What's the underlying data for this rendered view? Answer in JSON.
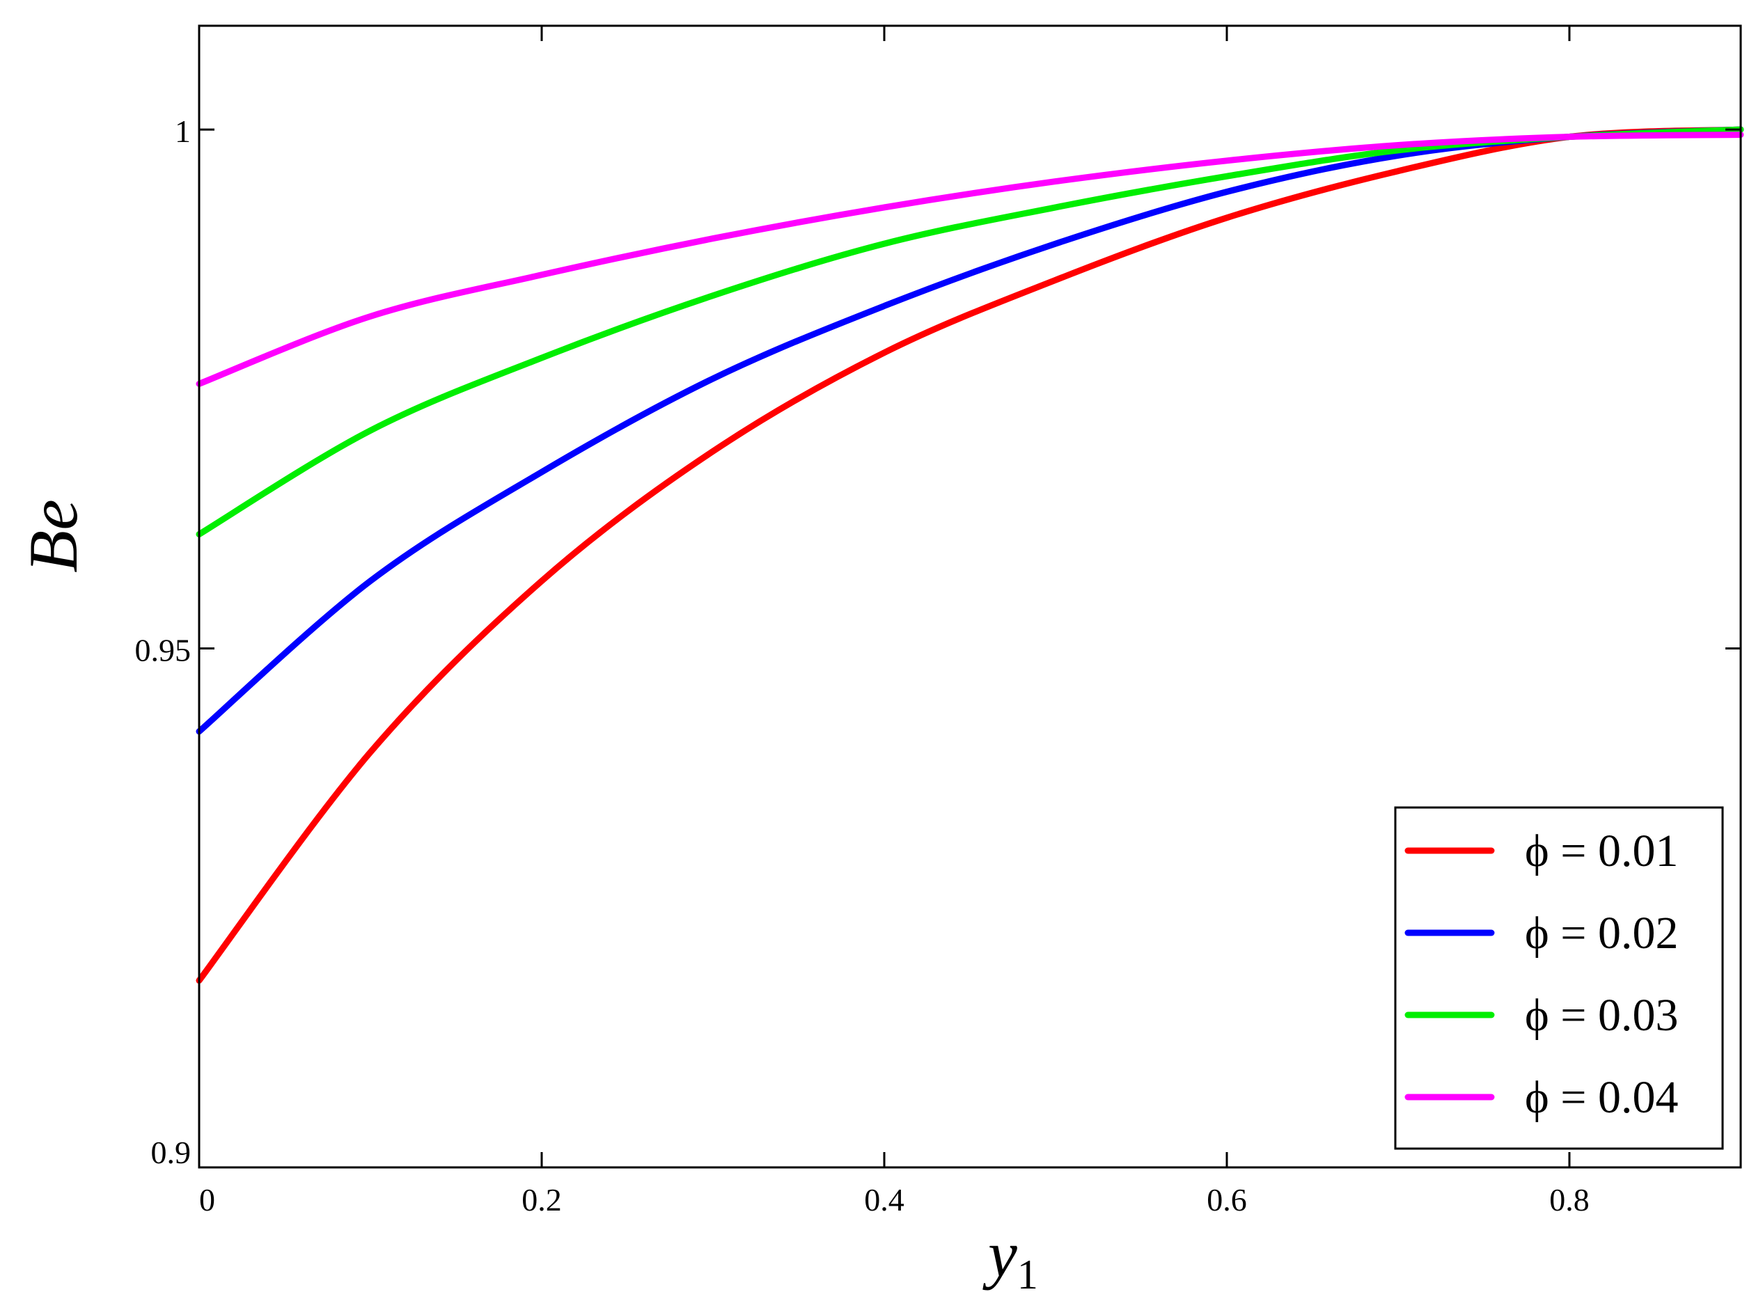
{
  "chart_data": {
    "type": "line",
    "title": "",
    "xlabel": "y",
    "xlabel_subscript": "1",
    "ylabel": "Be",
    "xlim": [
      0,
      0.9
    ],
    "ylim": [
      0.9,
      1.01
    ],
    "x_ticks": [
      {
        "value": 0,
        "label": "0"
      },
      {
        "value": 0.2,
        "label": "0.2"
      },
      {
        "value": 0.4,
        "label": "0.4"
      },
      {
        "value": 0.6,
        "label": "0.6"
      },
      {
        "value": 0.8,
        "label": "0.8"
      }
    ],
    "y_ticks": [
      {
        "value": 0.9,
        "label": "0.9"
      },
      {
        "value": 0.95,
        "label": "0.95"
      },
      {
        "value": 1.0,
        "label": "1"
      }
    ],
    "grid": false,
    "legend_position": "bottom-right",
    "x": [
      0,
      0.1,
      0.2,
      0.3,
      0.4,
      0.5,
      0.6,
      0.7,
      0.8,
      0.9
    ],
    "series": [
      {
        "name": "ϕ = 0.01",
        "color": "#ff0000",
        "values": [
          0.918,
          0.94,
          0.9565,
          0.969,
          0.9785,
          0.9855,
          0.9915,
          0.996,
          0.9993,
          1.0
        ]
      },
      {
        "name": "ϕ = 0.02",
        "color": "#0000ff",
        "values": [
          0.942,
          0.9565,
          0.967,
          0.976,
          0.983,
          0.989,
          0.994,
          0.9975,
          0.9993,
          1.0
        ]
      },
      {
        "name": "ϕ = 0.03",
        "color": "#00ee00",
        "values": [
          0.961,
          0.971,
          0.978,
          0.984,
          0.989,
          0.9925,
          0.9955,
          0.998,
          0.9993,
          1.0
        ]
      },
      {
        "name": "ϕ = 0.04",
        "color": "#ff00ff",
        "values": [
          0.9755,
          0.982,
          0.986,
          0.9895,
          0.9925,
          0.995,
          0.997,
          0.9985,
          0.9993,
          0.9995
        ]
      }
    ]
  }
}
